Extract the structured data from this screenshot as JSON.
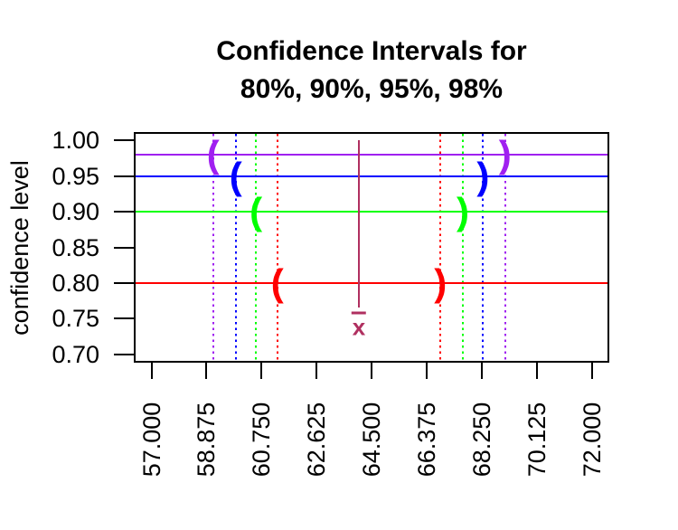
{
  "title": {
    "line1": "Confidence Intervals for",
    "line2": "80%, 90%, 95%, 98%"
  },
  "chart_data": {
    "type": "line",
    "title": "Confidence Intervals for 80%, 90%, 95%, 98%",
    "xlabel": "",
    "ylabel": "confidence level",
    "xlim": [
      57,
      72
    ],
    "ylim": [
      0.7,
      1.0
    ],
    "grid": false,
    "x_ticks": [
      57.0,
      58.875,
      60.75,
      62.625,
      64.5,
      66.375,
      68.25,
      70.125,
      72.0
    ],
    "x_tick_labels": [
      "57.000",
      "58.875",
      "60.750",
      "62.625",
      "64.500",
      "66.375",
      "68.250",
      "70.125",
      "72.000"
    ],
    "y_ticks": [
      0.7,
      0.75,
      0.8,
      0.85,
      0.9,
      0.95,
      1.0
    ],
    "y_tick_labels": [
      "0.70",
      "0.75",
      "0.80",
      "0.85",
      "0.90",
      "0.95",
      "1.00"
    ],
    "sample_mean": 64.07,
    "mean_label": "x̄",
    "mean_label_y": 0.74,
    "mean_line_y_range": [
      0.765,
      1.0
    ],
    "mean_color": "#B03060",
    "open_paren": "(",
    "close_paren": ")",
    "intervals": [
      {
        "level": 0.8,
        "lower": 61.29,
        "upper": 66.85,
        "color": "#FF0000"
      },
      {
        "level": 0.9,
        "lower": 60.56,
        "upper": 67.61,
        "color": "#00FF00"
      },
      {
        "level": 0.95,
        "lower": 59.87,
        "upper": 68.3,
        "color": "#0000FF"
      },
      {
        "level": 0.98,
        "lower": 59.1,
        "upper": 69.05,
        "color": "#A020F0"
      }
    ]
  }
}
